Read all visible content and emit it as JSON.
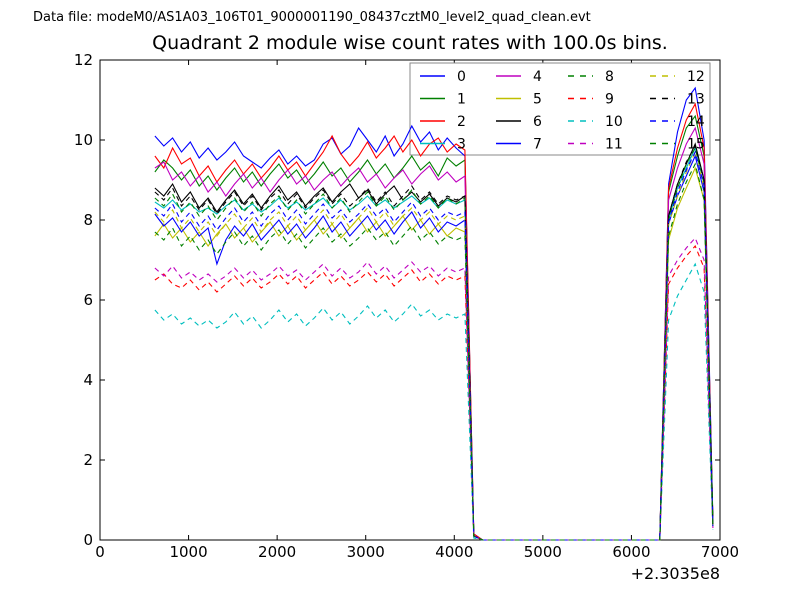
{
  "header": {
    "datafile": "Data file: modeM0/AS1A03_106T01_9000001190_08437cztM0_level2_quad_clean.evt"
  },
  "chart_data": {
    "type": "line",
    "title": "Quadrant 2 module wise count rates with 100.0s bins.",
    "xlabel": "",
    "ylabel": "",
    "xlim": [
      0,
      7000
    ],
    "ylim": [
      0,
      12
    ],
    "x_ticks": [
      0,
      1000,
      2000,
      3000,
      4000,
      5000,
      6000,
      7000
    ],
    "y_ticks": [
      0,
      2,
      4,
      6,
      8,
      10,
      12
    ],
    "x_offset_label": "+2.3035e8",
    "grid": false,
    "legend": {
      "position": "upper right",
      "columns": 4
    },
    "x": [
      620,
      720,
      820,
      920,
      1020,
      1120,
      1220,
      1320,
      1420,
      1520,
      1620,
      1720,
      1820,
      1920,
      2020,
      2120,
      2220,
      2320,
      2420,
      2520,
      2620,
      2720,
      2820,
      2920,
      3020,
      3120,
      3220,
      3320,
      3420,
      3520,
      3620,
      3720,
      3820,
      3920,
      4020,
      4120,
      4220,
      4320,
      4420,
      4520,
      4620,
      4720,
      4820,
      4920,
      5020,
      5120,
      5220,
      5320,
      5420,
      5520,
      5620,
      5720,
      5820,
      5920,
      6020,
      6120,
      6220,
      6320,
      6420,
      6520,
      6620,
      6720,
      6820,
      6920
    ],
    "series": [
      {
        "name": "0",
        "color": "#0000ff",
        "style": "solid",
        "values": [
          10.1,
          9.85,
          10.05,
          9.7,
          9.95,
          9.55,
          9.8,
          9.5,
          9.7,
          9.95,
          9.6,
          9.45,
          9.3,
          9.55,
          9.75,
          9.4,
          9.6,
          9.35,
          9.5,
          9.9,
          10.05,
          9.65,
          9.85,
          10.3,
          10.0,
          9.7,
          10.1,
          9.6,
          9.9,
          10.35,
          9.95,
          10.2,
          9.75,
          10.05,
          9.8,
          9.6,
          0.15,
          0,
          0,
          0,
          0,
          0,
          0,
          0,
          0,
          0,
          0,
          0,
          0,
          0,
          0,
          0,
          0,
          0,
          0,
          0,
          0,
          0,
          8.9,
          10.2,
          11.0,
          11.3,
          10.0,
          0.5
        ]
      },
      {
        "name": "1",
        "color": "#008000",
        "style": "solid",
        "values": [
          9.2,
          9.5,
          9.3,
          9.0,
          9.25,
          8.85,
          9.1,
          8.75,
          9.05,
          9.3,
          8.95,
          9.2,
          8.85,
          9.15,
          9.4,
          9.05,
          9.25,
          8.9,
          9.15,
          9.45,
          9.1,
          9.3,
          8.95,
          9.2,
          9.5,
          9.15,
          9.4,
          9.05,
          9.3,
          9.6,
          9.25,
          9.45,
          9.1,
          9.55,
          9.35,
          9.5,
          0.1,
          0,
          0,
          0,
          0,
          0,
          0,
          0,
          0,
          0,
          0,
          0,
          0,
          0,
          0,
          0,
          0,
          0,
          0,
          0,
          0,
          0,
          8.7,
          9.6,
          10.3,
          10.6,
          9.6,
          0.45
        ]
      },
      {
        "name": "2",
        "color": "#ff0000",
        "style": "solid",
        "values": [
          9.6,
          9.3,
          9.8,
          9.4,
          9.55,
          9.1,
          9.35,
          8.95,
          9.25,
          9.5,
          9.15,
          9.4,
          9.05,
          9.3,
          9.6,
          9.25,
          9.45,
          9.1,
          9.4,
          9.7,
          10.1,
          9.65,
          9.35,
          9.6,
          9.95,
          9.55,
          9.8,
          10.1,
          9.7,
          10.0,
          9.6,
          9.9,
          10.05,
          9.7,
          9.9,
          9.75,
          0.15,
          0,
          0,
          0,
          0,
          0,
          0,
          0,
          0,
          0,
          0,
          0,
          0,
          0,
          0,
          0,
          0,
          0,
          0,
          0,
          0,
          0,
          8.8,
          9.8,
          10.5,
          10.9,
          9.8,
          0.45
        ]
      },
      {
        "name": "3",
        "color": "#00bfbf",
        "style": "solid",
        "values": [
          8.45,
          8.3,
          8.5,
          8.25,
          8.4,
          8.2,
          8.3,
          8.15,
          8.35,
          8.5,
          8.25,
          8.4,
          8.2,
          8.35,
          8.55,
          8.3,
          8.45,
          8.25,
          8.4,
          8.55,
          8.3,
          8.5,
          8.25,
          8.4,
          8.6,
          8.35,
          8.5,
          8.3,
          8.45,
          8.6,
          8.4,
          8.55,
          8.3,
          8.5,
          8.4,
          8.5,
          0.1,
          0,
          0,
          0,
          0,
          0,
          0,
          0,
          0,
          0,
          0,
          0,
          0,
          0,
          0,
          0,
          0,
          0,
          0,
          0,
          0,
          0,
          8.0,
          8.8,
          9.3,
          9.8,
          9.0,
          0.4
        ]
      },
      {
        "name": "4",
        "color": "#bf00bf",
        "style": "solid",
        "values": [
          9.3,
          9.45,
          9.0,
          9.2,
          8.85,
          9.1,
          8.7,
          8.95,
          8.6,
          8.9,
          9.15,
          8.8,
          9.05,
          8.7,
          9.0,
          9.25,
          8.9,
          9.1,
          8.75,
          9.0,
          9.2,
          8.85,
          9.1,
          9.3,
          8.95,
          9.15,
          8.8,
          9.05,
          9.25,
          8.9,
          9.15,
          9.35,
          9.0,
          9.2,
          8.95,
          9.1,
          0.1,
          0,
          0,
          0,
          0,
          0,
          0,
          0,
          0,
          0,
          0,
          0,
          0,
          0,
          0,
          0,
          0,
          0,
          0,
          0,
          0,
          0,
          8.5,
          9.3,
          9.9,
          10.3,
          9.4,
          0.4
        ]
      },
      {
        "name": "5",
        "color": "#bfbf00",
        "style": "solid",
        "values": [
          7.6,
          7.9,
          7.55,
          7.8,
          7.45,
          7.7,
          7.35,
          7.65,
          7.9,
          7.55,
          7.8,
          7.45,
          7.7,
          7.95,
          7.6,
          7.85,
          7.5,
          7.75,
          8.0,
          7.65,
          7.9,
          7.55,
          7.8,
          8.05,
          7.7,
          7.95,
          7.6,
          7.85,
          8.1,
          7.75,
          8.0,
          7.65,
          7.9,
          7.6,
          7.8,
          7.7,
          0.1,
          0,
          0,
          0,
          0,
          0,
          0,
          0,
          0,
          0,
          0,
          0,
          0,
          0,
          0,
          0,
          0,
          0,
          0,
          0,
          0,
          0,
          7.5,
          8.3,
          8.8,
          9.3,
          8.5,
          0.35
        ]
      },
      {
        "name": "6",
        "color": "#000000",
        "style": "solid",
        "values": [
          8.8,
          8.6,
          8.9,
          8.45,
          8.7,
          8.3,
          8.55,
          8.2,
          8.5,
          8.75,
          8.4,
          8.65,
          8.3,
          8.6,
          8.85,
          8.5,
          8.7,
          8.35,
          8.6,
          8.8,
          8.45,
          8.7,
          8.9,
          8.55,
          8.75,
          8.4,
          8.65,
          8.85,
          8.5,
          8.7,
          8.45,
          8.65,
          8.35,
          8.55,
          8.45,
          8.6,
          0.1,
          0,
          0,
          0,
          0,
          0,
          0,
          0,
          0,
          0,
          0,
          0,
          0,
          0,
          0,
          0,
          0,
          0,
          0,
          0,
          0,
          0,
          8.1,
          8.9,
          9.4,
          9.9,
          9.0,
          0.4
        ]
      },
      {
        "name": "7",
        "color": "#0000ff",
        "style": "solid",
        "values": [
          8.15,
          7.85,
          8.05,
          7.7,
          7.95,
          7.6,
          7.8,
          6.9,
          7.5,
          7.85,
          7.6,
          7.9,
          7.5,
          7.75,
          8.0,
          7.65,
          7.9,
          7.55,
          7.8,
          8.1,
          7.7,
          7.95,
          7.6,
          7.85,
          8.1,
          7.75,
          8.0,
          7.65,
          7.95,
          8.2,
          7.8,
          8.05,
          7.7,
          7.95,
          7.85,
          8.0,
          0.1,
          0,
          0,
          0,
          0,
          0,
          0,
          0,
          0,
          0,
          0,
          0,
          0,
          0,
          0,
          0,
          0,
          0,
          0,
          0,
          0,
          0,
          7.9,
          8.6,
          9.1,
          9.6,
          8.7,
          0.35
        ]
      },
      {
        "name": "8",
        "color": "#008000",
        "style": "dashed",
        "values": [
          8.55,
          8.35,
          8.65,
          8.2,
          8.45,
          8.1,
          8.35,
          8.0,
          8.3,
          8.55,
          8.2,
          8.45,
          8.1,
          8.4,
          8.6,
          8.25,
          8.5,
          8.15,
          8.4,
          8.65,
          8.3,
          8.55,
          8.2,
          8.45,
          8.7,
          8.35,
          8.6,
          8.25,
          8.5,
          8.75,
          8.4,
          8.6,
          8.3,
          8.55,
          8.4,
          8.55,
          0.1,
          0,
          0,
          0,
          0,
          0,
          0,
          0,
          0,
          0,
          0,
          0,
          0,
          0,
          0,
          0,
          0,
          0,
          0,
          0,
          0,
          0,
          8.0,
          8.8,
          9.4,
          9.8,
          8.9,
          0.4
        ]
      },
      {
        "name": "9",
        "color": "#ff0000",
        "style": "dashed",
        "values": [
          6.5,
          6.65,
          6.4,
          6.3,
          6.5,
          6.25,
          6.45,
          6.2,
          6.4,
          6.6,
          6.35,
          6.55,
          6.3,
          6.45,
          6.65,
          6.4,
          6.6,
          6.3,
          6.5,
          6.7,
          6.4,
          6.6,
          6.35,
          6.5,
          6.7,
          6.45,
          6.65,
          6.35,
          6.55,
          6.75,
          6.45,
          6.65,
          6.4,
          6.6,
          6.5,
          6.6,
          0.1,
          0,
          0,
          0,
          0,
          0,
          0,
          0,
          0,
          0,
          0,
          0,
          0,
          0,
          0,
          0,
          0,
          0,
          0,
          0,
          0,
          0,
          6.4,
          6.8,
          7.1,
          7.35,
          6.8,
          0.3
        ]
      },
      {
        "name": "10",
        "color": "#00bfbf",
        "style": "dashed",
        "values": [
          5.75,
          5.5,
          5.65,
          5.4,
          5.55,
          5.35,
          5.5,
          5.3,
          5.45,
          5.7,
          5.4,
          5.6,
          5.3,
          5.5,
          5.75,
          5.45,
          5.65,
          5.35,
          5.55,
          5.8,
          5.5,
          5.7,
          5.4,
          5.6,
          5.85,
          5.55,
          5.75,
          5.45,
          5.65,
          5.9,
          5.6,
          5.75,
          5.5,
          5.65,
          5.55,
          5.65,
          0.05,
          0,
          0,
          0,
          0,
          0,
          0,
          0,
          0,
          0,
          0,
          0,
          0,
          0,
          0,
          0,
          0,
          0,
          0,
          0,
          0,
          0,
          5.5,
          6.1,
          6.5,
          6.9,
          6.2,
          0.25
        ]
      },
      {
        "name": "11",
        "color": "#bf00bf",
        "style": "dashed",
        "values": [
          6.8,
          6.6,
          6.85,
          6.55,
          6.7,
          6.5,
          6.65,
          6.45,
          6.6,
          6.8,
          6.55,
          6.75,
          6.5,
          6.65,
          6.85,
          6.6,
          6.75,
          6.5,
          6.7,
          6.9,
          6.6,
          6.8,
          6.55,
          6.7,
          6.95,
          6.65,
          6.85,
          6.55,
          6.75,
          6.95,
          6.7,
          6.85,
          6.6,
          6.8,
          6.7,
          6.8,
          0.1,
          0,
          0,
          0,
          0,
          0,
          0,
          0,
          0,
          0,
          0,
          0,
          0,
          0,
          0,
          0,
          0,
          0,
          0,
          0,
          0,
          0,
          6.6,
          7.0,
          7.3,
          7.55,
          7.0,
          0.3
        ]
      },
      {
        "name": "12",
        "color": "#bfbf00",
        "style": "dashed",
        "values": [
          8.2,
          7.95,
          8.25,
          7.8,
          8.05,
          7.7,
          7.95,
          7.6,
          7.9,
          8.15,
          7.8,
          8.05,
          7.7,
          8.0,
          8.2,
          7.85,
          8.1,
          7.75,
          8.0,
          8.25,
          7.9,
          8.15,
          7.8,
          8.05,
          8.3,
          7.95,
          8.2,
          7.85,
          8.1,
          8.3,
          8.0,
          8.2,
          7.9,
          8.1,
          8.0,
          8.1,
          0.1,
          0,
          0,
          0,
          0,
          0,
          0,
          0,
          0,
          0,
          0,
          0,
          0,
          0,
          0,
          0,
          0,
          0,
          0,
          0,
          0,
          0,
          7.9,
          8.6,
          9.2,
          9.7,
          8.8,
          0.35
        ]
      },
      {
        "name": "13",
        "color": "#000000",
        "style": "dashed",
        "values": [
          8.7,
          8.5,
          8.8,
          8.35,
          8.6,
          8.25,
          8.5,
          8.15,
          8.45,
          8.7,
          8.35,
          8.6,
          8.25,
          8.55,
          8.75,
          8.4,
          8.65,
          8.3,
          8.55,
          8.75,
          8.4,
          8.65,
          8.35,
          8.55,
          8.8,
          8.45,
          8.7,
          8.35,
          8.6,
          8.85,
          8.5,
          8.7,
          8.4,
          8.6,
          8.5,
          8.6,
          0.1,
          0,
          0,
          0,
          0,
          0,
          0,
          0,
          0,
          0,
          0,
          0,
          0,
          0,
          0,
          0,
          0,
          0,
          0,
          0,
          0,
          0,
          8.1,
          8.9,
          9.45,
          9.85,
          9.0,
          0.4
        ]
      },
      {
        "name": "14",
        "color": "#0000ff",
        "style": "dashed",
        "values": [
          8.3,
          8.1,
          8.4,
          7.95,
          8.2,
          7.85,
          8.1,
          7.75,
          8.05,
          8.3,
          7.95,
          8.2,
          7.85,
          8.15,
          8.35,
          8.0,
          8.25,
          7.9,
          8.15,
          8.4,
          8.05,
          8.25,
          7.95,
          8.15,
          8.4,
          8.1,
          8.3,
          7.95,
          8.2,
          8.45,
          8.1,
          8.3,
          8.0,
          8.2,
          8.1,
          8.2,
          0.1,
          0,
          0,
          0,
          0,
          0,
          0,
          0,
          0,
          0,
          0,
          0,
          0,
          0,
          0,
          0,
          0,
          0,
          0,
          0,
          0,
          0,
          7.95,
          8.7,
          9.25,
          9.7,
          8.85,
          0.35
        ]
      },
      {
        "name": "15",
        "color": "#008000",
        "style": "dashed",
        "values": [
          7.7,
          7.5,
          7.8,
          7.35,
          7.6,
          7.25,
          7.5,
          7.15,
          7.45,
          7.7,
          7.35,
          7.6,
          7.25,
          7.55,
          7.75,
          7.4,
          7.65,
          7.3,
          7.55,
          7.8,
          7.45,
          7.65,
          7.35,
          7.55,
          7.8,
          7.5,
          7.7,
          7.35,
          7.6,
          7.85,
          7.5,
          7.7,
          7.4,
          7.6,
          7.5,
          7.6,
          0.1,
          0,
          0,
          0,
          0,
          0,
          0,
          0,
          0,
          0,
          0,
          0,
          0,
          0,
          0,
          0,
          0,
          0,
          0,
          0,
          0,
          0,
          7.6,
          8.4,
          8.95,
          9.4,
          8.5,
          0.35
        ]
      }
    ]
  }
}
